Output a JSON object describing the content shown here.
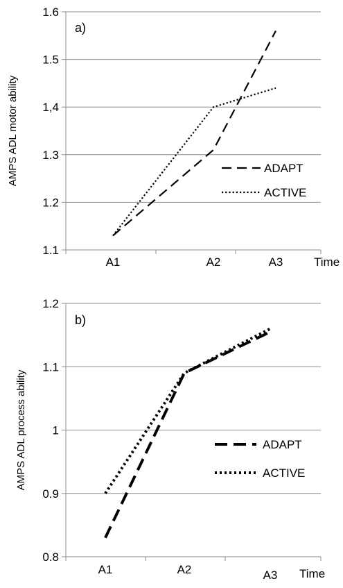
{
  "chart_data": [
    {
      "type": "line",
      "panel_label": "a)",
      "ylabel": "AMPS ADL motor ability",
      "xlabel": "Time",
      "categories": [
        "A1",
        "A2",
        "A3"
      ],
      "y_ticks": [
        "1.1",
        "1.2",
        "1.3",
        "1,4",
        "1.5",
        "1.6"
      ],
      "ylim": [
        1.1,
        1.6
      ],
      "grid": "horizontal",
      "legend": "right",
      "series": [
        {
          "name": "ADAPT",
          "style": "dashed",
          "values": [
            1.13,
            1.31,
            1.56
          ]
        },
        {
          "name": "ACTIVE",
          "style": "dotted",
          "values": [
            1.13,
            1.4,
            1.44
          ]
        }
      ]
    },
    {
      "type": "line",
      "panel_label": "b)",
      "ylabel": "AMPS ADL process ability",
      "xlabel": "Time",
      "categories": [
        "A1",
        "A2",
        "A3"
      ],
      "y_ticks": [
        "0.8",
        "0.9",
        "1",
        "1.1",
        "1.2"
      ],
      "ylim": [
        0.8,
        1.2
      ],
      "grid": "horizontal",
      "legend": "right",
      "series": [
        {
          "name": "ADAPT",
          "style": "dashed",
          "values": [
            0.83,
            1.09,
            1.155
          ]
        },
        {
          "name": "ACTIVE",
          "style": "dotted",
          "values": [
            0.9,
            1.09,
            1.16
          ]
        }
      ]
    }
  ]
}
